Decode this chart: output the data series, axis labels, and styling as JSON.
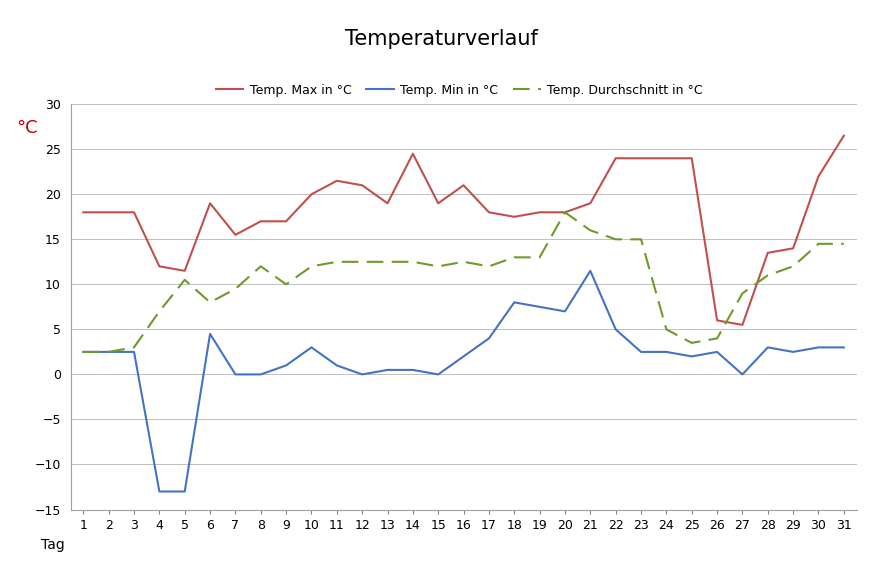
{
  "title": "Temperaturverlauf",
  "xlabel": "Tag",
  "ylabel": "°C",
  "ylabel_color": "#c0000a",
  "days": [
    1,
    2,
    3,
    4,
    5,
    6,
    7,
    8,
    9,
    10,
    11,
    12,
    13,
    14,
    15,
    16,
    17,
    18,
    19,
    20,
    21,
    22,
    23,
    24,
    25,
    26,
    27,
    28,
    29,
    30,
    31
  ],
  "temp_max": [
    18,
    18,
    18,
    12,
    11.5,
    19,
    15.5,
    17,
    17,
    20,
    21.5,
    21,
    19,
    24.5,
    19,
    21,
    18,
    17.5,
    18,
    18,
    19,
    24,
    24,
    24,
    24,
    6,
    5.5,
    13.5,
    14,
    22,
    26.5
  ],
  "temp_min": [
    2.5,
    2.5,
    2.5,
    -13,
    -13,
    4.5,
    0,
    0,
    1,
    3,
    1,
    0,
    0.5,
    0.5,
    0,
    2,
    4,
    8,
    7.5,
    7,
    11.5,
    5,
    2.5,
    2.5,
    2,
    2.5,
    0,
    3,
    2.5,
    3,
    3
  ],
  "temp_avg": [
    2.5,
    2.5,
    3,
    7,
    10.5,
    8,
    9.5,
    12,
    10,
    12,
    12.5,
    12.5,
    12.5,
    12.5,
    12,
    12.5,
    12,
    13,
    13,
    18,
    16,
    15,
    15,
    5,
    3.5,
    4,
    9,
    11,
    12,
    14.5,
    14.5
  ],
  "color_max": "#c0504d",
  "color_min": "#4472c4",
  "color_avg": "#6e9a2a",
  "ylim_min": -15,
  "ylim_max": 30,
  "yticks": [
    -15,
    -10,
    -5,
    0,
    5,
    10,
    15,
    20,
    25,
    30
  ],
  "legend_labels": [
    "Temp. Max in °C",
    "Temp. Min in °C",
    "Temp. Durchschnitt in °C"
  ],
  "background_color": "#ffffff",
  "grid_color": "#c0c0c0",
  "figsize": [
    8.83,
    5.79
  ],
  "dpi": 100
}
